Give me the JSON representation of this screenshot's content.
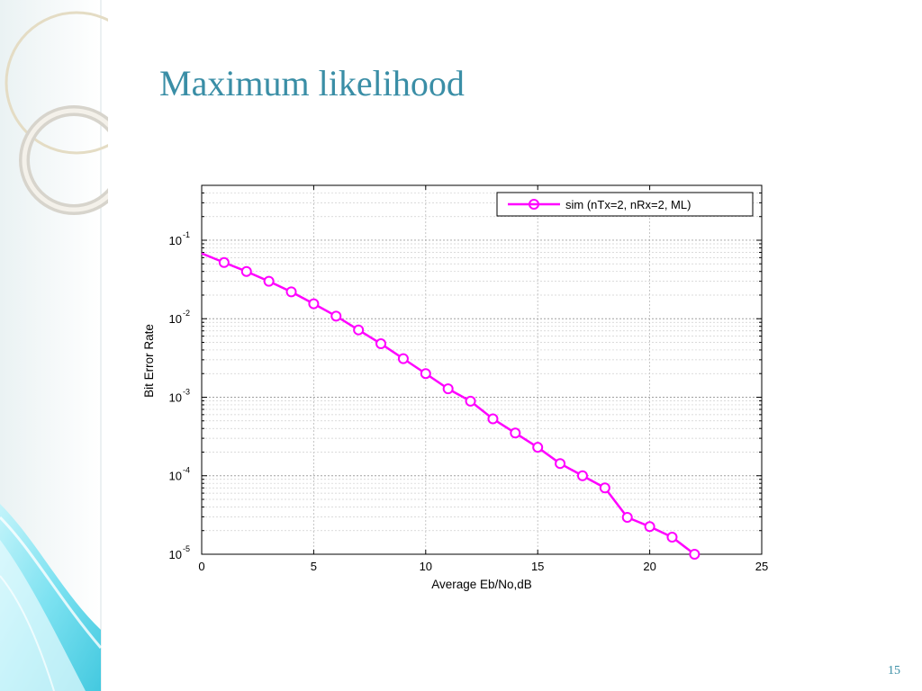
{
  "slide": {
    "title": "Maximum likelihood",
    "page_number": "15",
    "colors": {
      "title": "#3a8ea6",
      "series": "#ff00ff",
      "accent_light": "#7fe6f2"
    }
  },
  "chart_data": {
    "type": "line",
    "xlabel": "Average Eb/No,dB",
    "ylabel": "Bit Error Rate",
    "xlim": [
      0,
      25
    ],
    "ylim": [
      1e-05,
      0.5
    ],
    "yscale": "log",
    "grid": true,
    "legend_position": "top-right",
    "x_ticks": [
      "0",
      "5",
      "10",
      "15",
      "20",
      "25"
    ],
    "y_ticks": [
      {
        "base": "10",
        "exp": "-1"
      },
      {
        "base": "10",
        "exp": "-2"
      },
      {
        "base": "10",
        "exp": "-3"
      },
      {
        "base": "10",
        "exp": "-4"
      },
      {
        "base": "10",
        "exp": "-5"
      }
    ],
    "series": [
      {
        "name": "sim (nTx=2, nRx=2, ML)",
        "color": "#ff00ff",
        "marker": "circle",
        "x": [
          0,
          1,
          2,
          3,
          4,
          5,
          6,
          7,
          8,
          9,
          10,
          11,
          12,
          13,
          14,
          15,
          16,
          17,
          18,
          19,
          20,
          21,
          22
        ],
        "y": [
          0.068,
          0.052,
          0.04,
          0.03,
          0.022,
          0.0155,
          0.0108,
          0.0072,
          0.0048,
          0.0031,
          0.002,
          0.00128,
          0.00089,
          0.00053,
          0.00035,
          0.00023,
          0.000143,
          0.0001,
          7e-05,
          2.95e-05,
          2.25e-05,
          1.65e-05,
          1e-05
        ]
      }
    ]
  }
}
